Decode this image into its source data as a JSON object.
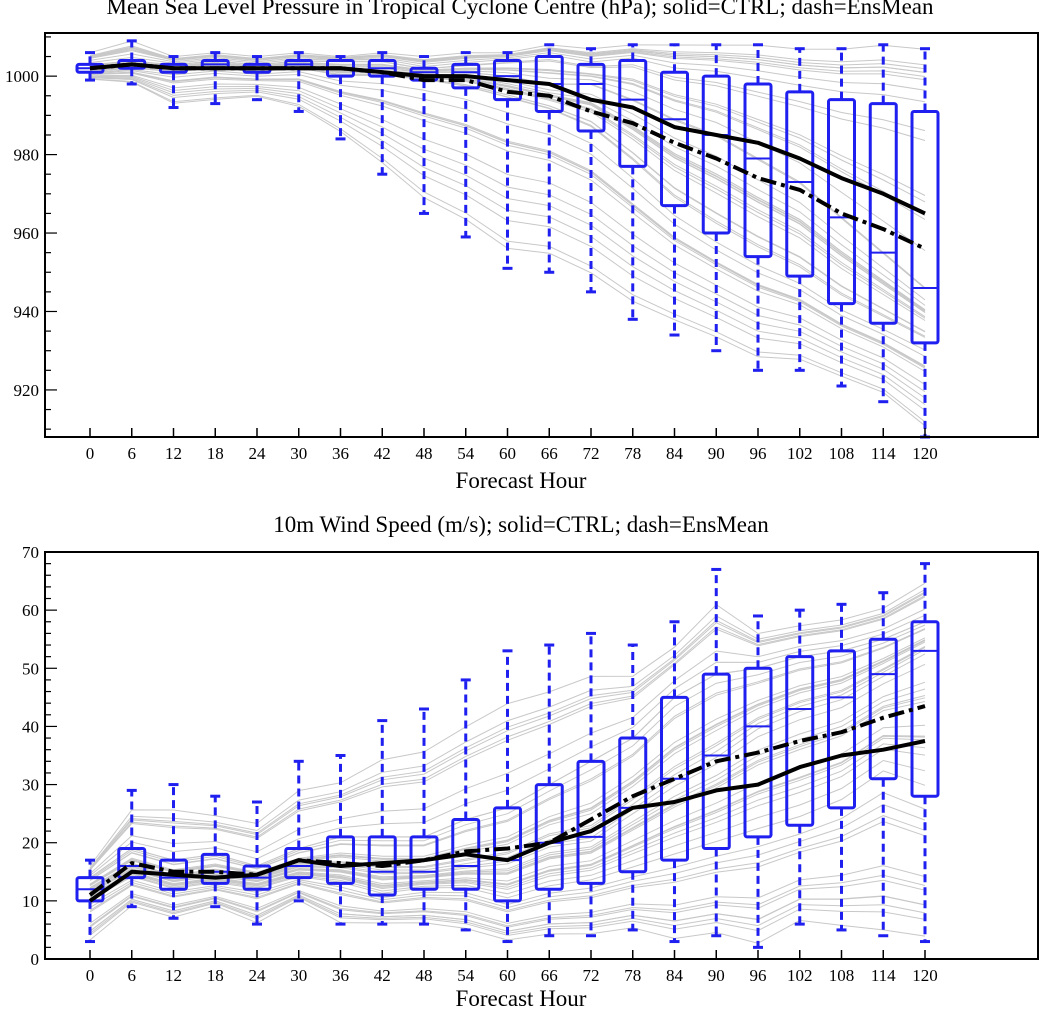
{
  "chart_data": [
    {
      "type": "boxplot",
      "title": "Mean Sea Level Pressure in Tropical Cyclone Centre (hPa); solid=CTRL; dash=EnsMean",
      "xlabel": "Forecast Hour",
      "ylabel": "",
      "ylim": [
        908,
        1011
      ],
      "yticks": [
        920,
        940,
        960,
        980,
        1000
      ],
      "categories": [
        "0",
        "6",
        "12",
        "18",
        "24",
        "30",
        "36",
        "42",
        "48",
        "54",
        "60",
        "66",
        "72",
        "78",
        "84",
        "90",
        "96",
        "102",
        "108",
        "114",
        "120"
      ],
      "colors": {
        "box": "#1f1ff0",
        "ctrl": "#000000",
        "ensmean": "#000000",
        "members": "#c8c8c8"
      },
      "boxes": [
        {
          "min": 999,
          "q1": 1001,
          "median": 1002,
          "q3": 1003,
          "max": 1006
        },
        {
          "min": 998,
          "q1": 1002,
          "median": 1003,
          "q3": 1004,
          "max": 1009
        },
        {
          "min": 992,
          "q1": 1001,
          "median": 1002,
          "q3": 1003,
          "max": 1005
        },
        {
          "min": 993,
          "q1": 1002,
          "median": 1003,
          "q3": 1004,
          "max": 1006
        },
        {
          "min": 994,
          "q1": 1001,
          "median": 1002,
          "q3": 1003,
          "max": 1005
        },
        {
          "min": 991,
          "q1": 1002,
          "median": 1003,
          "q3": 1004,
          "max": 1006
        },
        {
          "min": 984,
          "q1": 1000,
          "median": 1002,
          "q3": 1004,
          "max": 1005
        },
        {
          "min": 975,
          "q1": 1000,
          "median": 1002,
          "q3": 1004,
          "max": 1006
        },
        {
          "min": 965,
          "q1": 999,
          "median": 1001,
          "q3": 1002,
          "max": 1005
        },
        {
          "min": 959,
          "q1": 997,
          "median": 1001,
          "q3": 1003,
          "max": 1006
        },
        {
          "min": 951,
          "q1": 994,
          "median": 1000,
          "q3": 1004,
          "max": 1006
        },
        {
          "min": 950,
          "q1": 991,
          "median": 998,
          "q3": 1005,
          "max": 1008
        },
        {
          "min": 945,
          "q1": 986,
          "median": 998,
          "q3": 1003,
          "max": 1007
        },
        {
          "min": 938,
          "q1": 977,
          "median": 994,
          "q3": 1004,
          "max": 1008
        },
        {
          "min": 934,
          "q1": 967,
          "median": 989,
          "q3": 1001,
          "max": 1008
        },
        {
          "min": 930,
          "q1": 960,
          "median": 985,
          "q3": 1000,
          "max": 1008
        },
        {
          "min": 925,
          "q1": 954,
          "median": 979,
          "q3": 998,
          "max": 1008
        },
        {
          "min": 925,
          "q1": 949,
          "median": 973,
          "q3": 996,
          "max": 1007
        },
        {
          "min": 921,
          "q1": 942,
          "median": 964,
          "q3": 994,
          "max": 1007
        },
        {
          "min": 917,
          "q1": 937,
          "median": 955,
          "q3": 993,
          "max": 1008
        },
        {
          "min": 908,
          "q1": 932,
          "median": 946,
          "q3": 991,
          "max": 1007
        }
      ],
      "series": [
        {
          "name": "CTRL",
          "style": "solid",
          "values": [
            1002,
            1003,
            1002,
            1002,
            1002,
            1002,
            1002,
            1001,
            1000,
            1000,
            999,
            998,
            994,
            992,
            987,
            985,
            983,
            979,
            974,
            970,
            965
          ]
        },
        {
          "name": "EnsMean",
          "style": "dash",
          "values": [
            1002,
            1003,
            1002,
            1002,
            1002,
            1002,
            1002,
            1001,
            999,
            999,
            996,
            995,
            991,
            988,
            983,
            979,
            974,
            971,
            965,
            961,
            956
          ]
        }
      ]
    },
    {
      "type": "boxplot",
      "title": "10m Wind Speed (m/s); solid=CTRL; dash=EnsMean",
      "xlabel": "Forecast Hour",
      "ylabel": "",
      "ylim": [
        0,
        70
      ],
      "yticks": [
        0,
        10,
        20,
        30,
        40,
        50,
        60,
        70
      ],
      "categories": [
        "0",
        "6",
        "12",
        "18",
        "24",
        "30",
        "36",
        "42",
        "48",
        "54",
        "60",
        "66",
        "72",
        "78",
        "84",
        "90",
        "96",
        "102",
        "108",
        "114",
        "120"
      ],
      "colors": {
        "box": "#1f1ff0",
        "ctrl": "#000000",
        "ensmean": "#000000",
        "members": "#c8c8c8"
      },
      "boxes": [
        {
          "min": 3,
          "q1": 10,
          "median": 12,
          "q3": 14,
          "max": 17
        },
        {
          "min": 9,
          "q1": 14,
          "median": 16,
          "q3": 19,
          "max": 29
        },
        {
          "min": 7,
          "q1": 12,
          "median": 14,
          "q3": 17,
          "max": 30
        },
        {
          "min": 9,
          "q1": 13,
          "median": 15,
          "q3": 18,
          "max": 28
        },
        {
          "min": 6,
          "q1": 12,
          "median": 14,
          "q3": 16,
          "max": 27
        },
        {
          "min": 10,
          "q1": 14,
          "median": 16,
          "q3": 19,
          "max": 34
        },
        {
          "min": 6,
          "q1": 13,
          "median": 16,
          "q3": 21,
          "max": 35
        },
        {
          "min": 6,
          "q1": 11,
          "median": 15,
          "q3": 21,
          "max": 41
        },
        {
          "min": 6,
          "q1": 12,
          "median": 15,
          "q3": 21,
          "max": 43
        },
        {
          "min": 5,
          "q1": 12,
          "median": 16,
          "q3": 24,
          "max": 48
        },
        {
          "min": 3,
          "q1": 10,
          "median": 17,
          "q3": 26,
          "max": 53
        },
        {
          "min": 4,
          "q1": 12,
          "median": 20,
          "q3": 30,
          "max": 54
        },
        {
          "min": 4,
          "q1": 13,
          "median": 21,
          "q3": 34,
          "max": 56
        },
        {
          "min": 5,
          "q1": 15,
          "median": 26,
          "q3": 38,
          "max": 54
        },
        {
          "min": 3,
          "q1": 17,
          "median": 31,
          "q3": 45,
          "max": 58
        },
        {
          "min": 4,
          "q1": 19,
          "median": 35,
          "q3": 49,
          "max": 67
        },
        {
          "min": 2,
          "q1": 21,
          "median": 40,
          "q3": 50,
          "max": 59
        },
        {
          "min": 6,
          "q1": 23,
          "median": 43,
          "q3": 52,
          "max": 60
        },
        {
          "min": 5,
          "q1": 26,
          "median": 45,
          "q3": 53,
          "max": 61
        },
        {
          "min": 4,
          "q1": 31,
          "median": 49,
          "q3": 55,
          "max": 63
        },
        {
          "min": 3,
          "q1": 28,
          "median": 53,
          "q3": 58,
          "max": 68
        }
      ],
      "series": [
        {
          "name": "CTRL",
          "style": "solid",
          "values": [
            10,
            15,
            14.5,
            14,
            14.5,
            17,
            16,
            16.5,
            17,
            18,
            17,
            20,
            22,
            26,
            27,
            29,
            30,
            33,
            35,
            36,
            37.5
          ]
        },
        {
          "name": "EnsMean",
          "style": "dash",
          "values": [
            11,
            16.5,
            15,
            15,
            14.5,
            17,
            16.5,
            16,
            17,
            18.5,
            19,
            20,
            24,
            28,
            31,
            34,
            35.5,
            37.5,
            39,
            41.5,
            43.5
          ]
        }
      ]
    }
  ]
}
